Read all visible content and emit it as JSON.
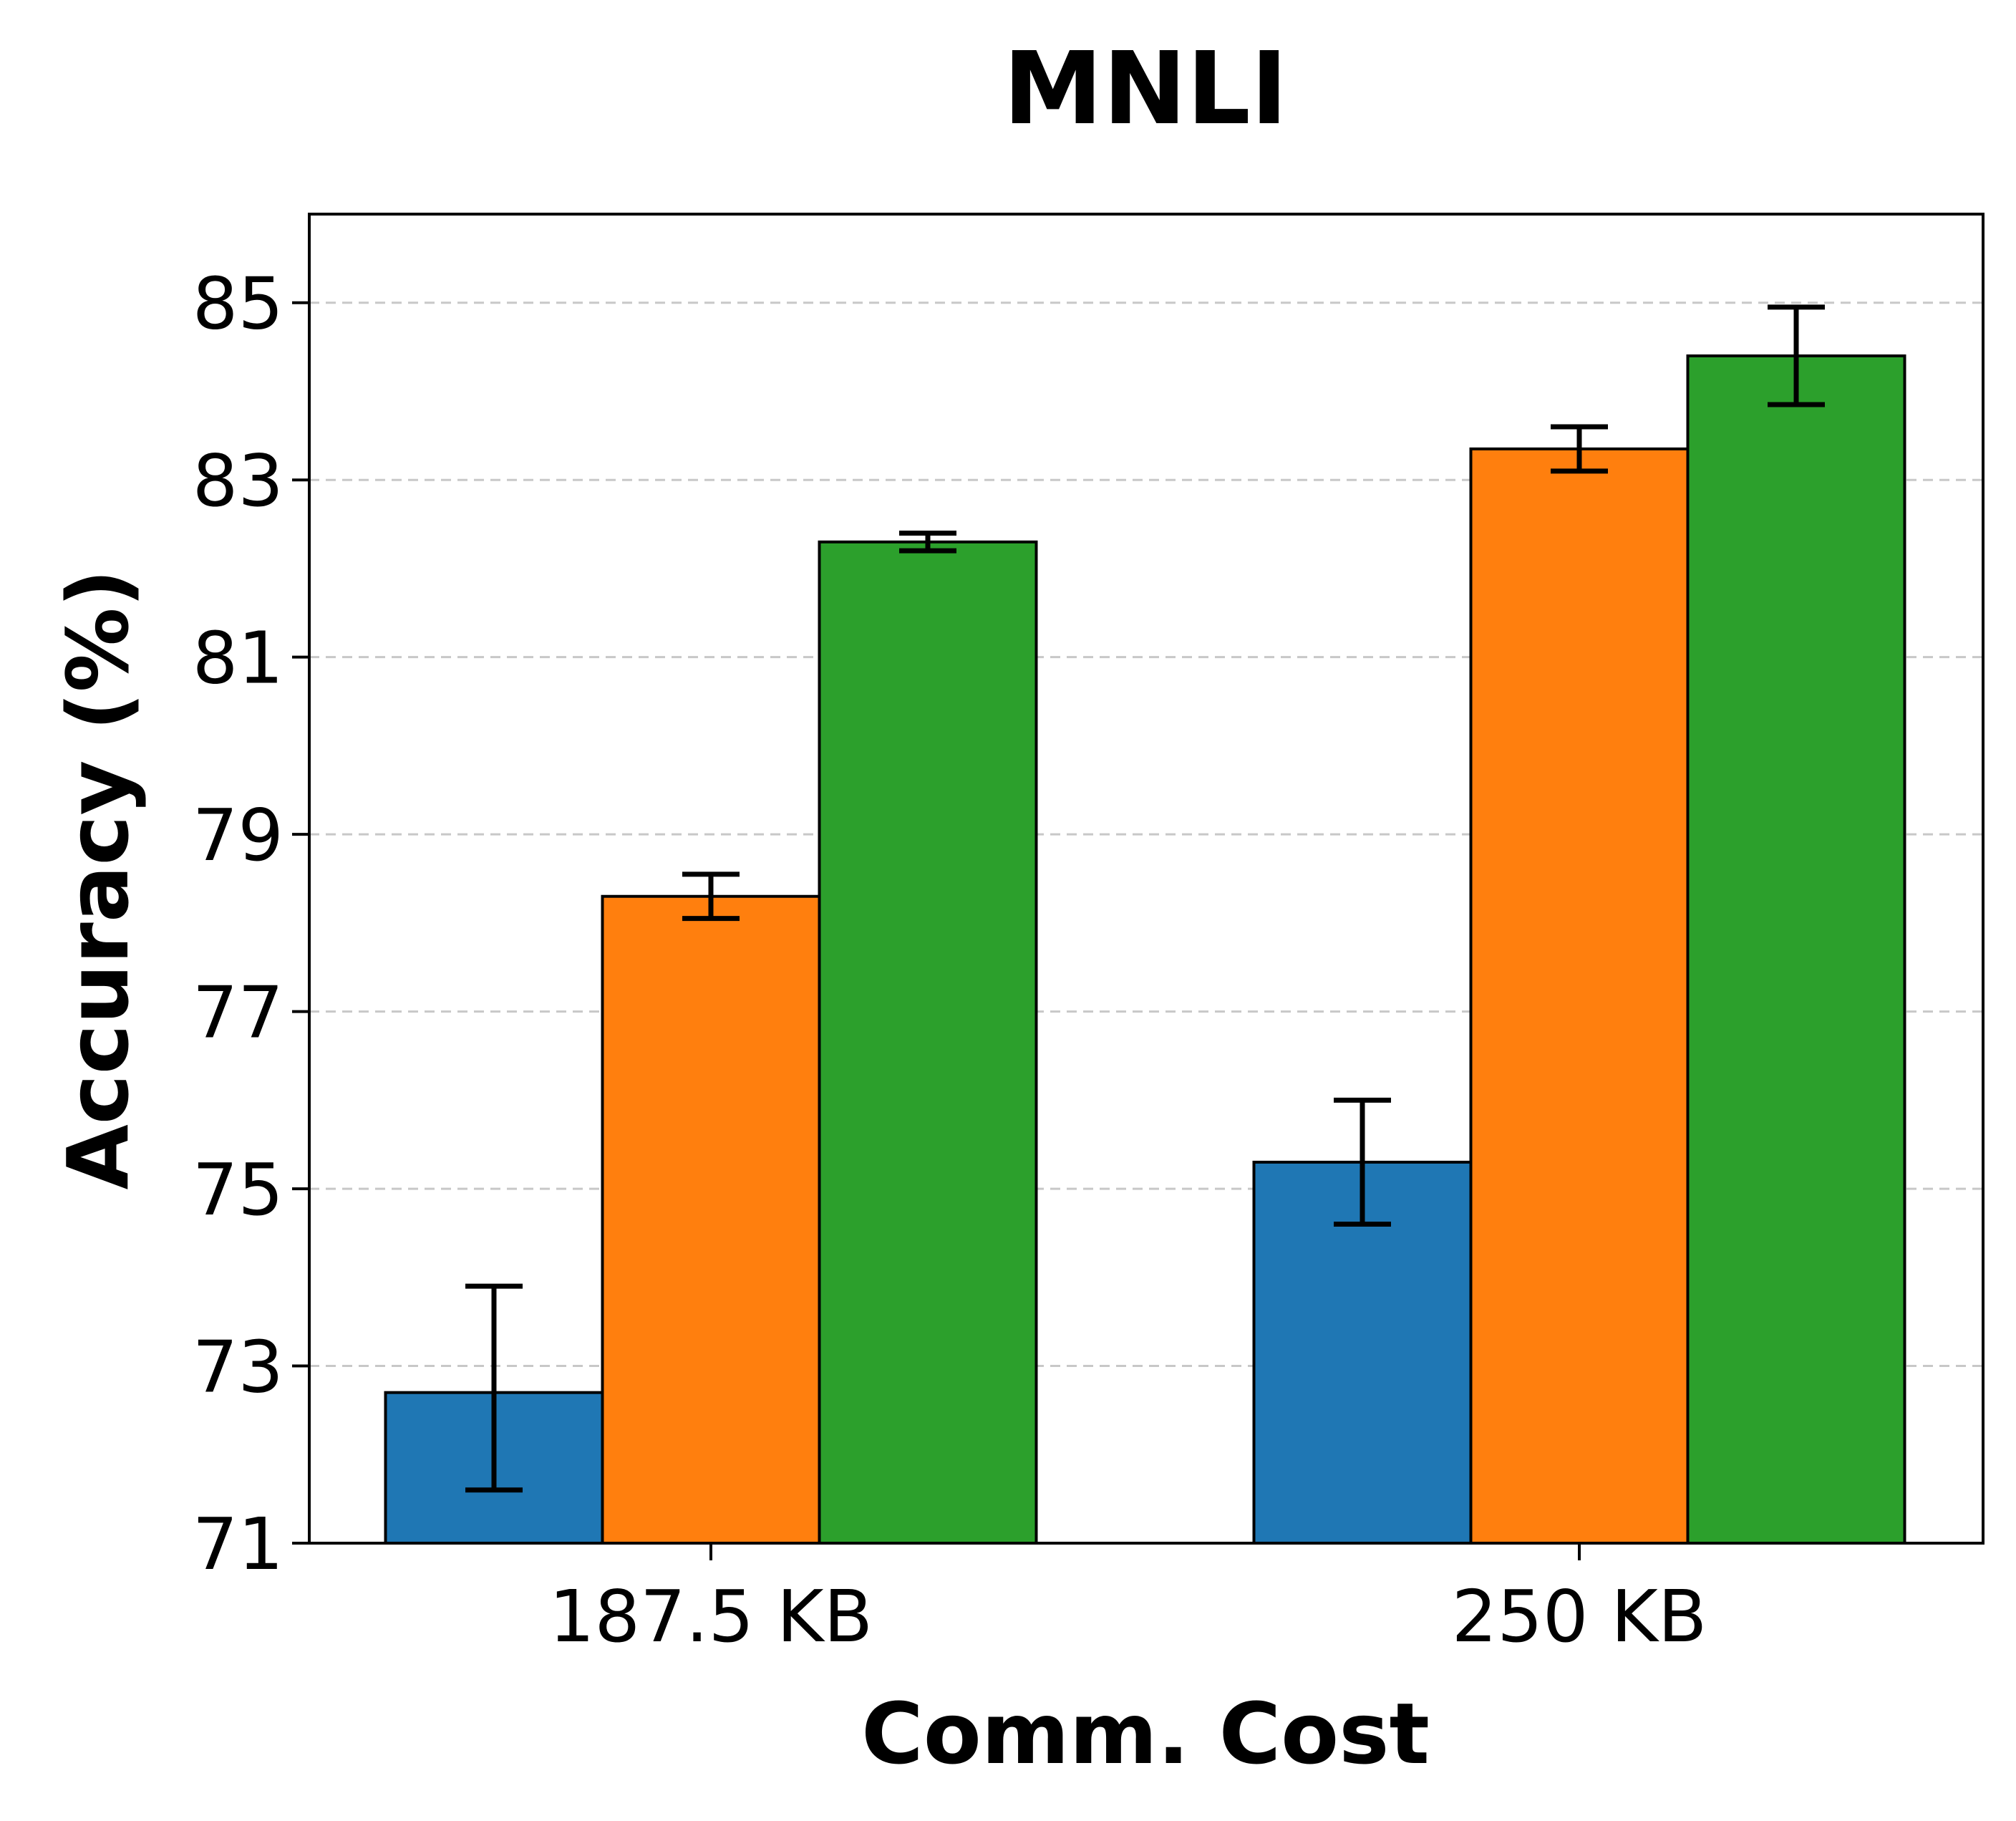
{
  "chart_data": {
    "type": "bar",
    "title": "MNLI",
    "xlabel": "Comm. Cost",
    "ylabel": "Accuracy (%)",
    "categories": [
      "187.5 KB",
      "250 KB"
    ],
    "ylim": [
      71,
      86
    ],
    "yticks": [
      71,
      73,
      75,
      77,
      79,
      81,
      83,
      85
    ],
    "ytick_labels": [
      "71",
      "73",
      "75",
      "77",
      "79",
      "81",
      "83",
      "85"
    ],
    "grid": "y-dashed",
    "series": [
      {
        "color": "#1f77b4",
        "values": [
          72.7,
          75.3
        ],
        "err_low": [
          71.6,
          74.6
        ],
        "err_high": [
          73.9,
          76.0
        ]
      },
      {
        "color": "#ff7f0e",
        "values": [
          78.3,
          83.35
        ],
        "err_low": [
          78.05,
          83.1
        ],
        "err_high": [
          78.55,
          83.6
        ]
      },
      {
        "color": "#2ca02c",
        "values": [
          82.3,
          84.4
        ],
        "err_low": [
          82.2,
          83.85
        ],
        "err_high": [
          82.4,
          84.95
        ]
      }
    ]
  }
}
